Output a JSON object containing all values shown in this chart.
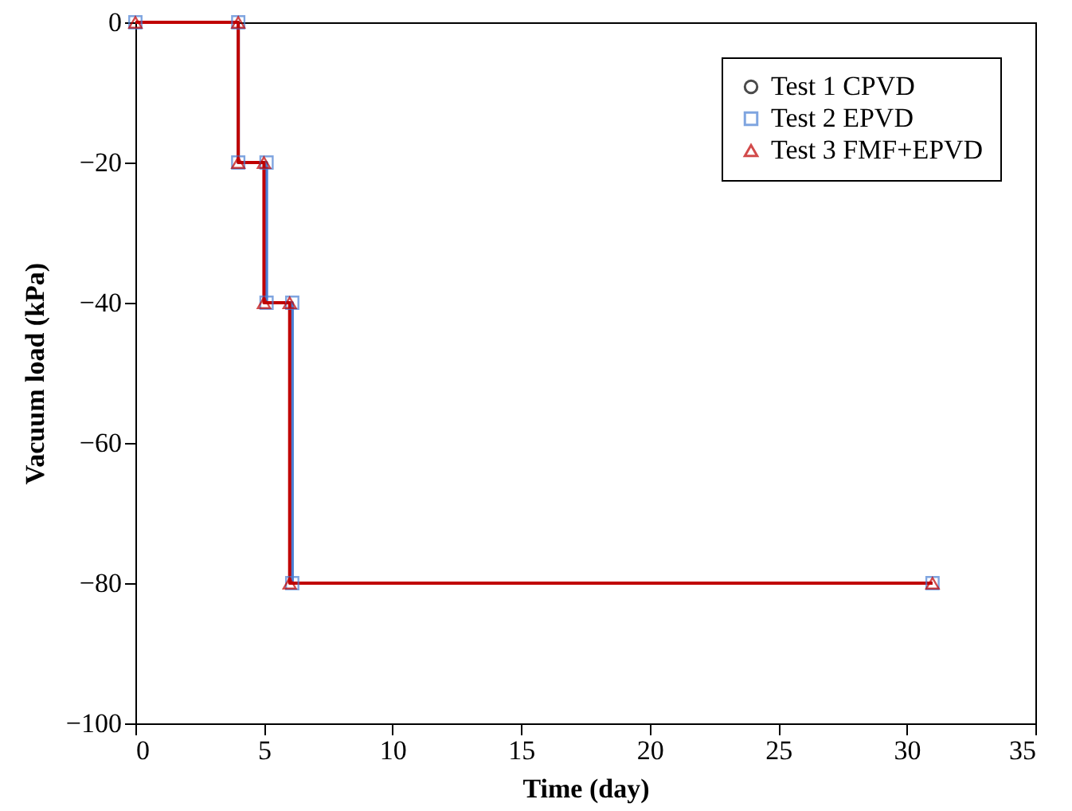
{
  "chart_data": {
    "type": "line",
    "xlabel": "Time (day)",
    "ylabel": "Vacuum load (kPa)",
    "xlim": [
      0,
      35
    ],
    "xticks": [
      0,
      5,
      10,
      15,
      20,
      25,
      30,
      35
    ],
    "ylim": [
      -100,
      0
    ],
    "yticks": [
      -100,
      -80,
      -60,
      -40,
      -20,
      0
    ],
    "grid": false,
    "legend": "top right",
    "series": [
      {
        "name": "Test 1 CPVD",
        "color": "#000000",
        "marker": "circle",
        "values": [
          null,
          null,
          null,
          null,
          null,
          null,
          null,
          null
        ]
      },
      {
        "name": "Test 2 EPVD",
        "color": "#4a7fd4",
        "marker": "square",
        "x": [
          0,
          4,
          4,
          5.1,
          5.1,
          6.1,
          6.1,
          31
        ],
        "values": [
          0,
          0,
          -20,
          -20,
          -40,
          -40,
          -80,
          -80
        ]
      },
      {
        "name": "Test 3 FMF+EPVD",
        "color": "#c00000",
        "marker": "triangle",
        "x": [
          0,
          4,
          4,
          5,
          5,
          6,
          6,
          31
        ],
        "values": [
          0,
          0,
          -20,
          -20,
          -40,
          -40,
          -80,
          -80
        ]
      }
    ]
  }
}
